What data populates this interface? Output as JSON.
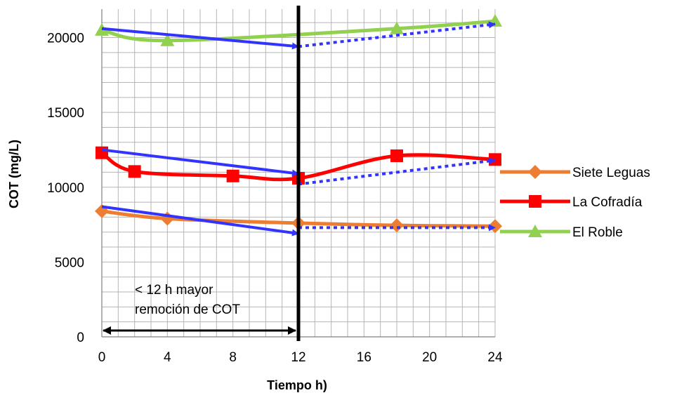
{
  "chart_data": {
    "type": "line",
    "title": "",
    "xlabel": "Tiempo h)",
    "ylabel": "COT (mg/L)",
    "xlim": [
      0,
      24
    ],
    "ylim": [
      0,
      20000
    ],
    "x_ticks": [
      0,
      4,
      8,
      12,
      16,
      20,
      24
    ],
    "y_ticks": [
      0,
      5000,
      10000,
      15000,
      20000
    ],
    "grid": true,
    "legend_position": "right",
    "series": [
      {
        "name": "Siete Leguas",
        "color": "#ED7D31",
        "marker": "diamond",
        "x": [
          0,
          4,
          12,
          18,
          24
        ],
        "values": [
          8400,
          7900,
          7600,
          7450,
          7400
        ]
      },
      {
        "name": "La Cofradía",
        "color": "#FF0000",
        "marker": "square",
        "x": [
          0,
          2,
          8,
          12,
          18,
          24
        ],
        "values": [
          12300,
          11050,
          10750,
          10600,
          12100,
          11850
        ]
      },
      {
        "name": "El Roble",
        "color": "#92D050",
        "marker": "triangle",
        "x": [
          0,
          4,
          18,
          24
        ],
        "values": [
          20500,
          19800,
          20600,
          21100
        ]
      }
    ],
    "trend_lines": [
      {
        "color": "#3333FF",
        "style": "solid",
        "x": [
          0,
          12
        ],
        "values": [
          20600,
          19400
        ]
      },
      {
        "color": "#3333FF",
        "style": "dotted",
        "x": [
          12,
          24
        ],
        "values": [
          19400,
          20900
        ]
      },
      {
        "color": "#3333FF",
        "style": "solid",
        "x": [
          0,
          12
        ],
        "values": [
          12500,
          10900
        ]
      },
      {
        "color": "#3333FF",
        "style": "dotted",
        "x": [
          12,
          24
        ],
        "values": [
          10200,
          11800
        ]
      },
      {
        "color": "#3333FF",
        "style": "solid",
        "x": [
          0,
          12
        ],
        "values": [
          8700,
          6900
        ]
      },
      {
        "color": "#3333FF",
        "style": "dotted",
        "x": [
          12,
          24
        ],
        "values": [
          7300,
          7300
        ]
      }
    ],
    "vertical_line_x": 12,
    "annotation": {
      "lines": [
        "< 12 h mayor",
        "remoción de COT"
      ],
      "arrow_x": [
        0,
        12
      ]
    }
  }
}
